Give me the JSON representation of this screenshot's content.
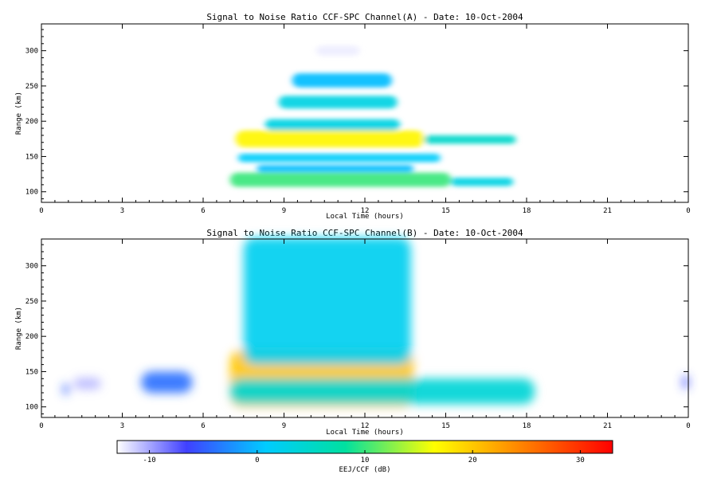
{
  "chart_data": [
    {
      "type": "heatmap",
      "title": "Signal to Noise Ratio CCF-SPC Channel(A) - Date: 10-Oct-2004",
      "xlabel": "Local Time (hours)",
      "ylabel": "Range (km)",
      "xlim": [
        0,
        24
      ],
      "ylim": [
        85,
        338
      ],
      "x_ticks": [
        "0",
        "3",
        "6",
        "9",
        "12",
        "15",
        "18",
        "21",
        "0"
      ],
      "y_ticks": [
        100,
        150,
        200,
        250,
        300
      ],
      "blobs": [
        {
          "t0": 7.0,
          "t1": 15.2,
          "r": 117,
          "dr": 10,
          "snr": 10
        },
        {
          "t0": 15.2,
          "t1": 17.5,
          "r": 114,
          "dr": 6,
          "snr": 3
        },
        {
          "t0": 8.0,
          "t1": 13.8,
          "r": 133,
          "dr": 5,
          "snr": 0
        },
        {
          "t0": 7.3,
          "t1": 14.8,
          "r": 148,
          "dr": 6,
          "snr": 1
        },
        {
          "t0": 7.2,
          "t1": 14.2,
          "r": 175,
          "dr": 12,
          "snr": 17
        },
        {
          "t0": 14.2,
          "t1": 17.6,
          "r": 174,
          "dr": 6,
          "snr": 5
        },
        {
          "t0": 8.3,
          "t1": 13.3,
          "r": 195,
          "dr": 8,
          "snr": 3
        },
        {
          "t0": 8.8,
          "t1": 13.2,
          "r": 227,
          "dr": 9,
          "snr": 3
        },
        {
          "t0": 9.3,
          "t1": 13.0,
          "r": 258,
          "dr": 10,
          "snr": 0
        },
        {
          "t0": 10.2,
          "t1": 11.8,
          "r": 300,
          "dr": 7,
          "snr": -12
        }
      ]
    },
    {
      "type": "heatmap",
      "title": "Signal to Noise Ratio CCF-SPC Channel(B) - Date: 10-Oct-2004",
      "xlabel": "Local Time (hours)",
      "ylabel": "Range (km)",
      "xlim": [
        0,
        24
      ],
      "ylim": [
        85,
        338
      ],
      "x_ticks": [
        "0",
        "3",
        "6",
        "9",
        "12",
        "15",
        "18",
        "21",
        "0"
      ],
      "y_ticks": [
        100,
        150,
        200,
        250,
        300
      ],
      "blobs": [
        {
          "t0": 7.0,
          "t1": 13.8,
          "r": 140,
          "dr": 40,
          "snr": 20
        },
        {
          "t0": 7.0,
          "t1": 18.3,
          "r": 122,
          "dr": 18,
          "snr": 4
        },
        {
          "t0": 7.5,
          "t1": 13.7,
          "r": 250,
          "dr": 90,
          "snr": 2
        },
        {
          "t0": 3.7,
          "t1": 5.6,
          "r": 135,
          "dr": 15,
          "snr": -4
        },
        {
          "t0": 1.2,
          "t1": 2.2,
          "r": 133,
          "dr": 8,
          "snr": -9
        },
        {
          "t0": 0.8,
          "t1": 1.0,
          "r": 125,
          "dr": 8,
          "snr": -5
        },
        {
          "t0": 23.8,
          "t1": 24.0,
          "r": 135,
          "dr": 10,
          "snr": -6
        }
      ]
    }
  ],
  "colorbar": {
    "label": "EEJ/CCF (dB)",
    "range": [
      -13,
      33
    ],
    "ticks": [
      "-10",
      "0",
      "10",
      "20",
      "30"
    ],
    "tick_values": [
      -10,
      0,
      10,
      20,
      30
    ],
    "colormap": [
      "#ffffff",
      "#4040ff",
      "#00ccff",
      "#00e0a0",
      "#ffff00",
      "#ff8000",
      "#ff0000"
    ]
  }
}
